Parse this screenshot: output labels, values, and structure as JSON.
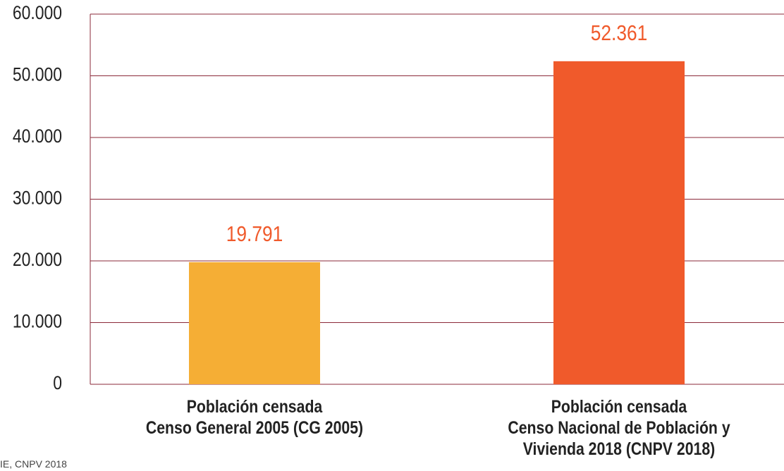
{
  "chart_data": {
    "type": "bar",
    "categories": [
      "Población censada\nCenso General 2005 (CG 2005)",
      "Población censada\nCenso Nacional de Población y\nVivienda 2018 (CNPV 2018)"
    ],
    "values": [
      19791,
      52361
    ],
    "value_labels": [
      "19.791",
      "52.361"
    ],
    "colors": [
      "#f5ae35",
      "#f05a2b"
    ],
    "value_label_color": "#f05a2b",
    "ylim": [
      0,
      60000
    ],
    "yticks": [
      0,
      {
        "value": 10000,
        "label": "10.000"
      },
      {
        "value": 20000,
        "label": "20.000"
      },
      {
        "value": 30000,
        "label": "30.000"
      },
      {
        "value": 40000,
        "label": "40.000"
      },
      {
        "value": 50000,
        "label": "50.000"
      },
      {
        "value": 60000,
        "label": "60.000"
      }
    ],
    "grid": true,
    "source": "IE, CNPV 2018"
  }
}
